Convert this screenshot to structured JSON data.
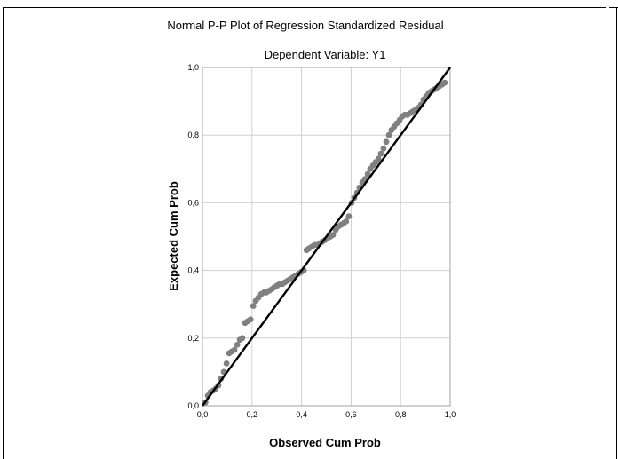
{
  "chart_data": {
    "type": "scatter",
    "title": "Normal P-P Plot of Regression Standardized Residual",
    "subtitle": "Dependent Variable: Y1",
    "xlabel": "Observed Cum Prob",
    "ylabel": "Expected Cum Prob",
    "xlim": [
      0,
      1
    ],
    "ylim": [
      0,
      1
    ],
    "x_ticks": [
      "0,0",
      "0,2",
      "0,4",
      "0,6",
      "0,8",
      "1,0"
    ],
    "y_ticks": [
      "0,0",
      "0,2",
      "0,4",
      "0,6",
      "0,8",
      "1,0"
    ],
    "grid": true,
    "reference_line": {
      "from": [
        0,
        0
      ],
      "to": [
        1,
        1
      ],
      "color": "#000000"
    },
    "point_color": "#808080",
    "plot_background": "#ffffff",
    "grid_color": "#d0d0d0",
    "points": [
      [
        0.012,
        0.01
      ],
      [
        0.022,
        0.03
      ],
      [
        0.032,
        0.04
      ],
      [
        0.043,
        0.045
      ],
      [
        0.053,
        0.05
      ],
      [
        0.064,
        0.06
      ],
      [
        0.075,
        0.08
      ],
      [
        0.086,
        0.1
      ],
      [
        0.097,
        0.125
      ],
      [
        0.108,
        0.155
      ],
      [
        0.118,
        0.16
      ],
      [
        0.129,
        0.165
      ],
      [
        0.14,
        0.18
      ],
      [
        0.151,
        0.195
      ],
      [
        0.161,
        0.2
      ],
      [
        0.172,
        0.245
      ],
      [
        0.183,
        0.25
      ],
      [
        0.194,
        0.255
      ],
      [
        0.205,
        0.295
      ],
      [
        0.215,
        0.31
      ],
      [
        0.226,
        0.32
      ],
      [
        0.237,
        0.33
      ],
      [
        0.248,
        0.335
      ],
      [
        0.258,
        0.335
      ],
      [
        0.269,
        0.34
      ],
      [
        0.28,
        0.345
      ],
      [
        0.29,
        0.35
      ],
      [
        0.301,
        0.355
      ],
      [
        0.312,
        0.36
      ],
      [
        0.323,
        0.36
      ],
      [
        0.333,
        0.365
      ],
      [
        0.344,
        0.37
      ],
      [
        0.355,
        0.375
      ],
      [
        0.366,
        0.38
      ],
      [
        0.376,
        0.385
      ],
      [
        0.387,
        0.39
      ],
      [
        0.398,
        0.395
      ],
      [
        0.409,
        0.4
      ],
      [
        0.42,
        0.46
      ],
      [
        0.43,
        0.465
      ],
      [
        0.441,
        0.47
      ],
      [
        0.452,
        0.475
      ],
      [
        0.462,
        0.475
      ],
      [
        0.473,
        0.48
      ],
      [
        0.484,
        0.485
      ],
      [
        0.495,
        0.49
      ],
      [
        0.505,
        0.495
      ],
      [
        0.516,
        0.5
      ],
      [
        0.527,
        0.505
      ],
      [
        0.538,
        0.52
      ],
      [
        0.548,
        0.53
      ],
      [
        0.559,
        0.535
      ],
      [
        0.57,
        0.54
      ],
      [
        0.58,
        0.545
      ],
      [
        0.591,
        0.56
      ],
      [
        0.602,
        0.6
      ],
      [
        0.613,
        0.615
      ],
      [
        0.624,
        0.63
      ],
      [
        0.634,
        0.645
      ],
      [
        0.645,
        0.66
      ],
      [
        0.656,
        0.67
      ],
      [
        0.667,
        0.685
      ],
      [
        0.677,
        0.7
      ],
      [
        0.688,
        0.71
      ],
      [
        0.699,
        0.72
      ],
      [
        0.71,
        0.73
      ],
      [
        0.72,
        0.745
      ],
      [
        0.731,
        0.76
      ],
      [
        0.742,
        0.78
      ],
      [
        0.753,
        0.8
      ],
      [
        0.763,
        0.815
      ],
      [
        0.774,
        0.825
      ],
      [
        0.785,
        0.835
      ],
      [
        0.796,
        0.845
      ],
      [
        0.806,
        0.855
      ],
      [
        0.817,
        0.86
      ],
      [
        0.828,
        0.86
      ],
      [
        0.839,
        0.865
      ],
      [
        0.849,
        0.87
      ],
      [
        0.86,
        0.875
      ],
      [
        0.871,
        0.88
      ],
      [
        0.882,
        0.89
      ],
      [
        0.892,
        0.905
      ],
      [
        0.903,
        0.915
      ],
      [
        0.914,
        0.925
      ],
      [
        0.925,
        0.93
      ],
      [
        0.935,
        0.935
      ],
      [
        0.946,
        0.94
      ],
      [
        0.957,
        0.945
      ],
      [
        0.968,
        0.95
      ],
      [
        0.978,
        0.955
      ]
    ]
  }
}
